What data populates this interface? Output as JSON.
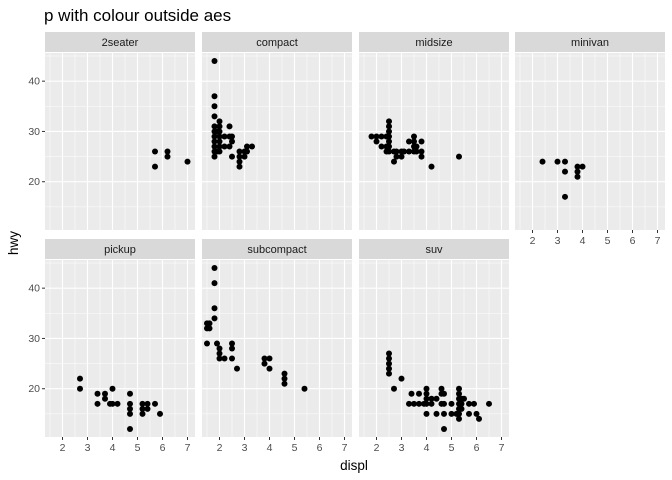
{
  "chart_data": {
    "type": "scatter",
    "title": "p with colour outside aes",
    "xlabel": "displ",
    "ylabel": "hwy",
    "xlim": [
      1.3,
      7.3
    ],
    "ylim": [
      10.4,
      45.6
    ],
    "x_ticks": [
      2,
      3,
      4,
      5,
      6,
      7
    ],
    "y_ticks": [
      20,
      30,
      40
    ],
    "grid": true,
    "legend": "none",
    "colors": {
      "panel_bg": "#ebebeb",
      "grid_major": "#ffffff",
      "strip_bg": "#d9d9d9",
      "point": "#000000"
    },
    "facets": [
      {
        "name": "2seater",
        "points": [
          [
            5.7,
            26
          ],
          [
            5.7,
            23
          ],
          [
            6.2,
            26
          ],
          [
            6.2,
            25
          ],
          [
            7.0,
            24
          ]
        ]
      },
      {
        "name": "compact",
        "points": [
          [
            1.8,
            44
          ],
          [
            1.8,
            37
          ],
          [
            1.8,
            35
          ],
          [
            1.8,
            33
          ],
          [
            1.8,
            31
          ],
          [
            1.8,
            30
          ],
          [
            1.8,
            29
          ],
          [
            1.8,
            28
          ],
          [
            1.8,
            27
          ],
          [
            1.8,
            26
          ],
          [
            1.8,
            25
          ],
          [
            1.9,
            30
          ],
          [
            1.9,
            26
          ],
          [
            2.0,
            32
          ],
          [
            2.0,
            31
          ],
          [
            2.0,
            30
          ],
          [
            2.0,
            29
          ],
          [
            2.0,
            28
          ],
          [
            2.0,
            27
          ],
          [
            2.0,
            26
          ],
          [
            2.2,
            29
          ],
          [
            2.2,
            27
          ],
          [
            2.4,
            31
          ],
          [
            2.4,
            29
          ],
          [
            2.4,
            27
          ],
          [
            2.5,
            29
          ],
          [
            2.5,
            28
          ],
          [
            2.5,
            25
          ],
          [
            2.8,
            26
          ],
          [
            2.8,
            25
          ],
          [
            2.8,
            24
          ],
          [
            2.8,
            23
          ],
          [
            3.0,
            26
          ],
          [
            3.0,
            25
          ],
          [
            3.1,
            27
          ],
          [
            3.1,
            26
          ],
          [
            3.3,
            27
          ]
        ]
      },
      {
        "name": "midsize",
        "points": [
          [
            1.8,
            29
          ],
          [
            2.0,
            29
          ],
          [
            2.0,
            28
          ],
          [
            2.2,
            29
          ],
          [
            2.2,
            27
          ],
          [
            2.4,
            29
          ],
          [
            2.4,
            27
          ],
          [
            2.4,
            26
          ],
          [
            2.5,
            32
          ],
          [
            2.5,
            31
          ],
          [
            2.5,
            30
          ],
          [
            2.5,
            29
          ],
          [
            2.5,
            28
          ],
          [
            2.5,
            27
          ],
          [
            2.5,
            26
          ],
          [
            2.7,
            26
          ],
          [
            2.7,
            24
          ],
          [
            2.8,
            26
          ],
          [
            2.8,
            25
          ],
          [
            3.0,
            26
          ],
          [
            3.0,
            25
          ],
          [
            3.1,
            26
          ],
          [
            3.3,
            28
          ],
          [
            3.3,
            26
          ],
          [
            3.5,
            29
          ],
          [
            3.5,
            28
          ],
          [
            3.5,
            27
          ],
          [
            3.5,
            26
          ],
          [
            3.6,
            27
          ],
          [
            3.6,
            26
          ],
          [
            3.8,
            28
          ],
          [
            3.8,
            26
          ],
          [
            3.8,
            25
          ],
          [
            4.2,
            23
          ],
          [
            5.3,
            25
          ]
        ]
      },
      {
        "name": "minivan",
        "points": [
          [
            2.4,
            24
          ],
          [
            3.0,
            24
          ],
          [
            3.3,
            24
          ],
          [
            3.3,
            22
          ],
          [
            3.3,
            17
          ],
          [
            3.8,
            23
          ],
          [
            3.8,
            22
          ],
          [
            3.8,
            21
          ],
          [
            4.0,
            23
          ]
        ]
      },
      {
        "name": "pickup",
        "points": [
          [
            2.7,
            22
          ],
          [
            2.7,
            20
          ],
          [
            3.4,
            19
          ],
          [
            3.4,
            17
          ],
          [
            3.7,
            19
          ],
          [
            3.7,
            18
          ],
          [
            3.9,
            17
          ],
          [
            4.0,
            20
          ],
          [
            4.0,
            17
          ],
          [
            4.2,
            17
          ],
          [
            4.7,
            19
          ],
          [
            4.7,
            17
          ],
          [
            4.7,
            16
          ],
          [
            4.7,
            15
          ],
          [
            4.7,
            12
          ],
          [
            5.2,
            17
          ],
          [
            5.2,
            16
          ],
          [
            5.2,
            15
          ],
          [
            5.4,
            17
          ],
          [
            5.4,
            16
          ],
          [
            5.7,
            17
          ],
          [
            5.9,
            15
          ]
        ]
      },
      {
        "name": "subcompact",
        "points": [
          [
            1.5,
            33
          ],
          [
            1.5,
            32
          ],
          [
            1.5,
            29
          ],
          [
            1.6,
            33
          ],
          [
            1.6,
            32
          ],
          [
            1.8,
            44
          ],
          [
            1.8,
            41
          ],
          [
            1.8,
            36
          ],
          [
            1.8,
            34
          ],
          [
            1.9,
            29
          ],
          [
            2.0,
            28
          ],
          [
            2.0,
            27
          ],
          [
            2.0,
            26
          ],
          [
            2.2,
            26
          ],
          [
            2.5,
            29
          ],
          [
            2.5,
            28
          ],
          [
            2.5,
            26
          ],
          [
            2.7,
            24
          ],
          [
            3.8,
            26
          ],
          [
            3.8,
            25
          ],
          [
            4.0,
            26
          ],
          [
            4.0,
            24
          ],
          [
            4.6,
            23
          ],
          [
            4.6,
            22
          ],
          [
            4.6,
            21
          ],
          [
            5.4,
            20
          ]
        ]
      },
      {
        "name": "suv",
        "points": [
          [
            2.5,
            27
          ],
          [
            2.5,
            26
          ],
          [
            2.5,
            25
          ],
          [
            2.5,
            24
          ],
          [
            2.5,
            23
          ],
          [
            2.7,
            20
          ],
          [
            3.0,
            22
          ],
          [
            3.3,
            17
          ],
          [
            3.4,
            19
          ],
          [
            3.5,
            17
          ],
          [
            3.7,
            19
          ],
          [
            3.7,
            17
          ],
          [
            3.9,
            17
          ],
          [
            4.0,
            20
          ],
          [
            4.0,
            19
          ],
          [
            4.0,
            18
          ],
          [
            4.0,
            17
          ],
          [
            4.0,
            15
          ],
          [
            4.2,
            18
          ],
          [
            4.2,
            17
          ],
          [
            4.4,
            18
          ],
          [
            4.4,
            15
          ],
          [
            4.6,
            20
          ],
          [
            4.6,
            19
          ],
          [
            4.6,
            17
          ],
          [
            4.7,
            19
          ],
          [
            4.7,
            17
          ],
          [
            4.7,
            15
          ],
          [
            4.7,
            12
          ],
          [
            5.0,
            17
          ],
          [
            5.0,
            15
          ],
          [
            5.2,
            15
          ],
          [
            5.3,
            20
          ],
          [
            5.3,
            19
          ],
          [
            5.3,
            18
          ],
          [
            5.3,
            17
          ],
          [
            5.3,
            16
          ],
          [
            5.3,
            15
          ],
          [
            5.3,
            14
          ],
          [
            5.4,
            18
          ],
          [
            5.4,
            17
          ],
          [
            5.4,
            16
          ],
          [
            5.5,
            18
          ],
          [
            5.7,
            17
          ],
          [
            5.7,
            15
          ],
          [
            5.9,
            17
          ],
          [
            6.0,
            15
          ],
          [
            6.1,
            14
          ],
          [
            6.5,
            17
          ]
        ]
      }
    ]
  }
}
